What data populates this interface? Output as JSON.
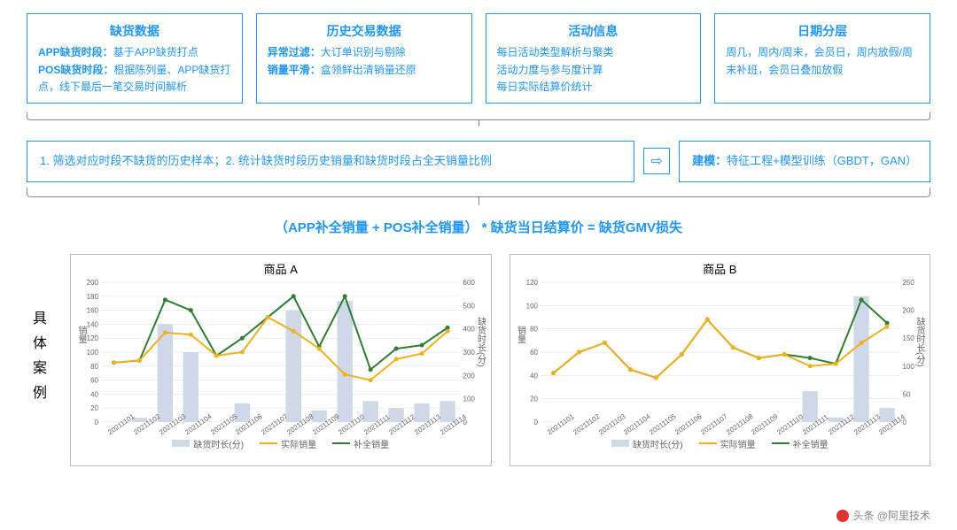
{
  "top_boxes": [
    {
      "title": "缺货数据",
      "lines": [
        {
          "bold": "APP缺货时段：",
          "text": "基于APP缺货打点"
        },
        {
          "bold": "POS缺货时段：",
          "text": "根据陈列量、APP缺货打点，线下最后一笔交易时间解析"
        }
      ]
    },
    {
      "title": "历史交易数据",
      "lines": [
        {
          "bold": "异常过滤：",
          "text": "大订单识别与剔除"
        },
        {
          "bold": "销量平滑：",
          "text": "盒领鲜出清销量还原"
        }
      ]
    },
    {
      "title": "活动信息",
      "lines": [
        {
          "text": "每日活动类型解析与聚类"
        },
        {
          "text": "活动力度与参与度计算"
        },
        {
          "text": "每日实际结算价统计"
        }
      ]
    },
    {
      "title": "日期分层",
      "lines": [
        {
          "text": "周几，周内/周末，会员日，周内放假/周末补班，会员日叠加放假"
        }
      ]
    }
  ],
  "mid": {
    "left": "1. 筛选对应时段不缺货的历史样本；2. 统计缺货时段历史销量和缺货时段占全天销量比例",
    "right_bold": "建模：",
    "right_text": "特征工程+模型训练（GBDT，GAN）"
  },
  "formula": "（APP补全销量  +  POS补全销量） *  缺货当日结算价  =  缺货GMV损失",
  "case_label": "具体案例",
  "charts": [
    {
      "title": "商品 A",
      "ylabel_left": "销量",
      "ylabel_right": "缺货时长(分)",
      "ylim_left": [
        0,
        200
      ],
      "yticks_left": [
        0,
        20,
        40,
        60,
        80,
        100,
        120,
        140,
        160,
        180,
        200
      ],
      "ylim_right": [
        0,
        600
      ],
      "yticks_right": [
        0,
        100,
        200,
        300,
        400,
        500,
        600
      ],
      "dates": [
        "20211101",
        "20211102",
        "20211103",
        "20211104",
        "20211105",
        "20211106",
        "20211107",
        "20211108",
        "20211109",
        "20211110",
        "20211111",
        "20211112",
        "20211113",
        "20211114"
      ],
      "bars": [
        0,
        18,
        420,
        300,
        0,
        80,
        0,
        480,
        50,
        520,
        90,
        60,
        80,
        90
      ],
      "actual": [
        85,
        88,
        128,
        125,
        95,
        100,
        150,
        130,
        105,
        68,
        60,
        90,
        98,
        130
      ],
      "filled": [
        85,
        88,
        175,
        160,
        95,
        120,
        150,
        180,
        108,
        180,
        75,
        105,
        110,
        135
      ],
      "colors": {
        "bar": "#cfd8e6",
        "actual": "#f0b020",
        "filled": "#2e7d32",
        "grid": "#ddd",
        "axis": "#888"
      }
    },
    {
      "title": "商品 B",
      "ylabel_left": "销量",
      "ylabel_right": "缺货时长(分)",
      "ylim_left": [
        0,
        120
      ],
      "yticks_left": [
        0,
        20,
        40,
        60,
        80,
        100,
        120
      ],
      "ylim_right": [
        0,
        250
      ],
      "yticks_right": [
        0,
        50,
        100,
        150,
        200,
        250
      ],
      "dates": [
        "20211101",
        "20211102",
        "20211103",
        "20211104",
        "20211105",
        "20211106",
        "20211107",
        "20211108",
        "20211109",
        "20211110",
        "20211111",
        "20211112",
        "20211113",
        "20211114"
      ],
      "bars": [
        0,
        0,
        0,
        0,
        0,
        0,
        0,
        0,
        0,
        0,
        55,
        8,
        225,
        25
      ],
      "actual": [
        42,
        60,
        68,
        45,
        38,
        58,
        88,
        64,
        55,
        58,
        48,
        50,
        68,
        82
      ],
      "filled": [
        42,
        60,
        68,
        45,
        38,
        58,
        88,
        64,
        55,
        58,
        55,
        50,
        105,
        85
      ],
      "colors": {
        "bar": "#cfd8e6",
        "actual": "#f0b020",
        "filled": "#2e7d32",
        "grid": "#ddd",
        "axis": "#888"
      }
    }
  ],
  "legend": [
    "缺货时长(分)",
    "实际销量",
    "补全销量"
  ],
  "watermark": "头条 @阿里技术"
}
